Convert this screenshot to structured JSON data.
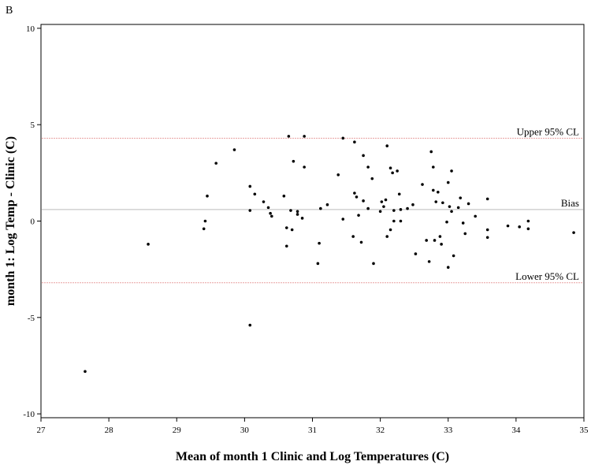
{
  "panel_label": "B",
  "chart_data": {
    "type": "scatter",
    "xlabel": "Mean of month 1 Clinic and Log Temperatures (C)",
    "ylabel": "month 1: Log Temp - Clinic (C)",
    "xlim": [
      27,
      35
    ],
    "ylim": [
      -10.2,
      10.2
    ],
    "x_ticks": [
      27,
      28,
      29,
      30,
      31,
      32,
      33,
      34,
      35
    ],
    "y_ticks": [
      10,
      5,
      0,
      -5,
      -10
    ],
    "grid": false,
    "reference_lines": [
      {
        "label": "Upper 95% CL",
        "y": 4.3,
        "color": "#e8a0a0"
      },
      {
        "label": "Bias",
        "y": 0.6,
        "color": "#bbbbbb"
      },
      {
        "label": "Lower 95% CL",
        "y": -3.2,
        "color": "#e8a0a0"
      }
    ],
    "points": [
      [
        27.65,
        -7.8
      ],
      [
        28.58,
        -1.2
      ],
      [
        29.4,
        -0.4
      ],
      [
        29.42,
        0.0
      ],
      [
        29.45,
        1.3
      ],
      [
        29.58,
        3.0
      ],
      [
        29.85,
        3.7
      ],
      [
        30.08,
        1.8
      ],
      [
        30.08,
        0.55
      ],
      [
        30.08,
        -5.4
      ],
      [
        30.15,
        1.4
      ],
      [
        30.28,
        1.0
      ],
      [
        30.35,
        0.7
      ],
      [
        30.38,
        0.4
      ],
      [
        30.4,
        0.25
      ],
      [
        30.58,
        1.3
      ],
      [
        30.62,
        -0.35
      ],
      [
        30.62,
        -1.3
      ],
      [
        30.65,
        4.4
      ],
      [
        30.68,
        0.55
      ],
      [
        30.7,
        -0.45
      ],
      [
        30.72,
        3.1
      ],
      [
        30.78,
        0.5
      ],
      [
        30.78,
        0.35
      ],
      [
        30.85,
        0.15
      ],
      [
        30.88,
        4.4
      ],
      [
        30.88,
        2.8
      ],
      [
        31.08,
        -2.2
      ],
      [
        31.1,
        -1.15
      ],
      [
        31.12,
        0.65
      ],
      [
        31.22,
        0.85
      ],
      [
        31.38,
        2.4
      ],
      [
        31.45,
        4.3
      ],
      [
        31.45,
        0.1
      ],
      [
        31.6,
        -0.8
      ],
      [
        31.62,
        4.1
      ],
      [
        31.62,
        1.45
      ],
      [
        31.65,
        1.25
      ],
      [
        31.68,
        0.3
      ],
      [
        31.72,
        -1.1
      ],
      [
        31.75,
        3.4
      ],
      [
        31.75,
        1.05
      ],
      [
        31.82,
        2.8
      ],
      [
        31.82,
        0.65
      ],
      [
        31.88,
        2.2
      ],
      [
        31.9,
        -2.2
      ],
      [
        32.0,
        0.5
      ],
      [
        32.02,
        1.0
      ],
      [
        32.05,
        0.75
      ],
      [
        32.08,
        1.1
      ],
      [
        32.1,
        3.9
      ],
      [
        32.1,
        -0.8
      ],
      [
        32.15,
        2.75
      ],
      [
        32.15,
        -0.45
      ],
      [
        32.18,
        2.5
      ],
      [
        32.2,
        0.0
      ],
      [
        32.2,
        0.55
      ],
      [
        32.25,
        2.6
      ],
      [
        32.28,
        1.4
      ],
      [
        32.3,
        0.6
      ],
      [
        32.3,
        0.0
      ],
      [
        32.4,
        0.65
      ],
      [
        32.48,
        0.85
      ],
      [
        32.52,
        -1.7
      ],
      [
        32.62,
        1.9
      ],
      [
        32.68,
        -1.0
      ],
      [
        32.72,
        -2.1
      ],
      [
        32.75,
        3.6
      ],
      [
        32.78,
        2.8
      ],
      [
        32.78,
        1.6
      ],
      [
        32.8,
        -1.0
      ],
      [
        32.82,
        1.0
      ],
      [
        32.85,
        1.5
      ],
      [
        32.88,
        -0.8
      ],
      [
        32.9,
        -1.2
      ],
      [
        32.92,
        0.95
      ],
      [
        32.98,
        -0.05
      ],
      [
        33.0,
        2.0
      ],
      [
        33.0,
        -2.4
      ],
      [
        33.02,
        0.75
      ],
      [
        33.05,
        0.5
      ],
      [
        33.05,
        2.6
      ],
      [
        33.08,
        -1.8
      ],
      [
        33.15,
        0.7
      ],
      [
        33.18,
        1.2
      ],
      [
        33.22,
        -0.1
      ],
      [
        33.25,
        -0.65
      ],
      [
        33.3,
        0.9
      ],
      [
        33.4,
        0.25
      ],
      [
        33.58,
        1.15
      ],
      [
        33.58,
        -0.45
      ],
      [
        33.58,
        -0.85
      ],
      [
        33.88,
        -0.25
      ],
      [
        34.05,
        -0.3
      ],
      [
        34.18,
        0.0
      ],
      [
        34.18,
        -0.4
      ],
      [
        34.85,
        -0.6
      ]
    ]
  }
}
